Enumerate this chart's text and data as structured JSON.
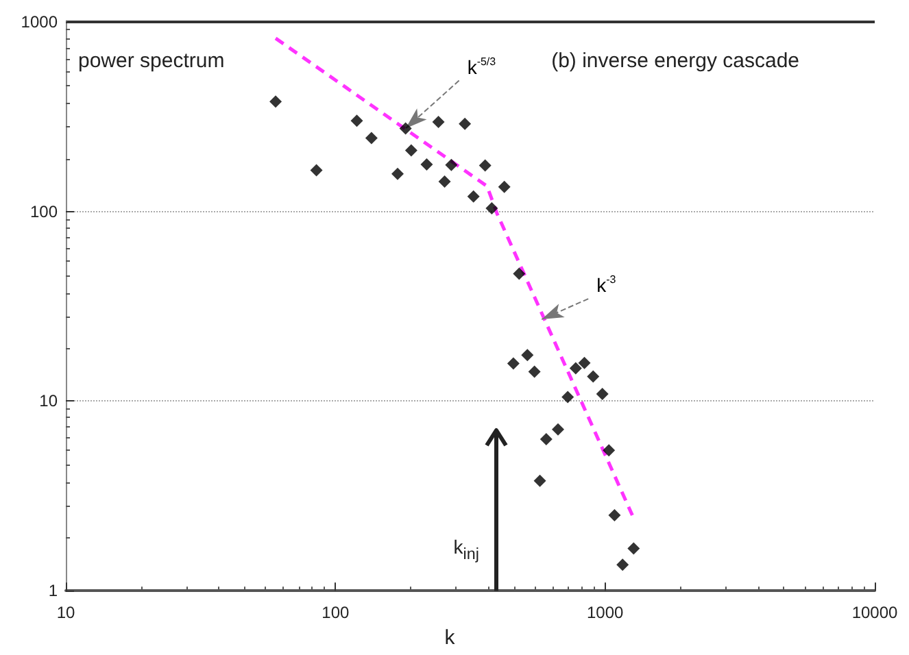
{
  "chart_data": {
    "type": "scatter",
    "title": "(b) inverse energy cascade",
    "ylabel": "power spectrum",
    "xlabel": "k",
    "log": "xy",
    "grid": "y",
    "xlim": [
      10,
      10000
    ],
    "xticks": [
      10,
      100,
      1000,
      10000
    ],
    "ylim": [
      1,
      1000
    ],
    "yticks": [
      1,
      10,
      100,
      1000
    ],
    "series": [
      {
        "marker": "diamond",
        "color": "#000000",
        "x": [
          60,
          85,
          120,
          136,
          170,
          182,
          191,
          218,
          241,
          254,
          269,
          302,
          325,
          359,
          380,
          423,
          480,
          457,
          515,
          547,
          778,
          838,
          903,
          727,
          977,
          605,
          669,
          573,
          1033,
          1084,
          1276,
          1161
        ],
        "values": [
          380,
          165,
          301,
          244,
          158,
          274,
          210,
          177,
          297,
          144,
          176,
          290,
          120,
          175,
          104,
          135,
          47,
          15.8,
          17.5,
          14.3,
          14.9,
          15.9,
          13.5,
          10.5,
          10.9,
          6.3,
          7.1,
          3.8,
          5.5,
          2.5,
          1.67,
          1.37
        ]
      },
      {
        "type": "line",
        "marker": "none",
        "line_style": "dashed",
        "color": "#ff33ff",
        "x": [
          60,
          365,
          397,
          1262
        ],
        "values": [
          820,
          136,
          98,
          2.5
        ]
      }
    ],
    "annotations": [
      {
        "text": "k$^{-5/3}$",
        "x": 182,
        "y": 274
      },
      {
        "text": "k$^{-3}$",
        "x": 582,
        "y": 27
      }
    ],
    "ref_lines": [
      {
        "axis": "x",
        "value": 394,
        "label": "k$_{inj}$"
      }
    ]
  }
}
